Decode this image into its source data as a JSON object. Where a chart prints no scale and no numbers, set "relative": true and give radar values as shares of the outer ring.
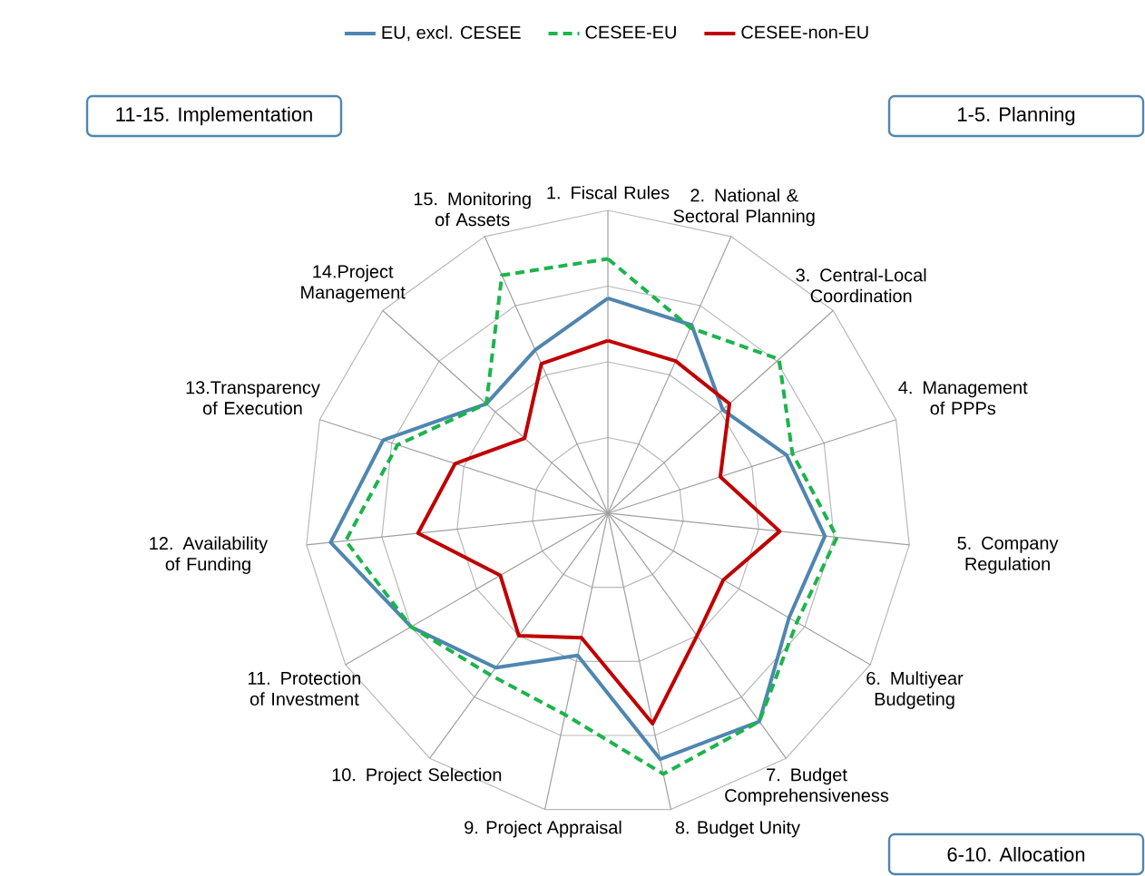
{
  "chart_data": {
    "type": "radar",
    "relative": true,
    "grid": true,
    "legend": "top",
    "marker": "none",
    "categories": [
      "1. Fiscal Rules",
      "2. National & Sectoral Planning",
      "3. Central-Local Coordination",
      "4. Management of PPPs",
      "5. Company Regulation",
      "6. Multiyear Budgeting",
      "7. Budget Comprehensiveness",
      "8. Budget Unity",
      "9. Project Appraisal",
      "10. Project Selection",
      "11. Protection of Investment",
      "12. Availability of Funding",
      "13.Transparency of Execution",
      "14.Project Management",
      "15. Monitoring of Assets"
    ],
    "series": [
      {
        "name": "EU, excl. CESEE",
        "color": "#4f86b0",
        "line_style": "solid",
        "values": [
          0.71,
          0.68,
          0.51,
          0.62,
          0.72,
          0.69,
          0.85,
          0.83,
          0.48,
          0.63,
          0.75,
          0.92,
          0.78,
          0.54,
          0.59
        ]
      },
      {
        "name": "CESEE-EU",
        "color": "#1cb44c",
        "line_style": "dashed",
        "values": [
          0.84,
          0.67,
          0.76,
          0.64,
          0.76,
          0.72,
          0.85,
          0.88,
          0.68,
          0.66,
          0.75,
          0.87,
          0.73,
          0.54,
          0.86
        ]
      },
      {
        "name": "CESEE-non-EU",
        "color": "#c00000",
        "line_style": "solid",
        "values": [
          0.57,
          0.55,
          0.54,
          0.39,
          0.57,
          0.44,
          0.5,
          0.71,
          0.42,
          0.5,
          0.41,
          0.63,
          0.53,
          0.37,
          0.54
        ]
      }
    ],
    "annotations": [
      "11-15. Implementation",
      "1-5. Planning",
      "6-10. Allocation"
    ]
  }
}
